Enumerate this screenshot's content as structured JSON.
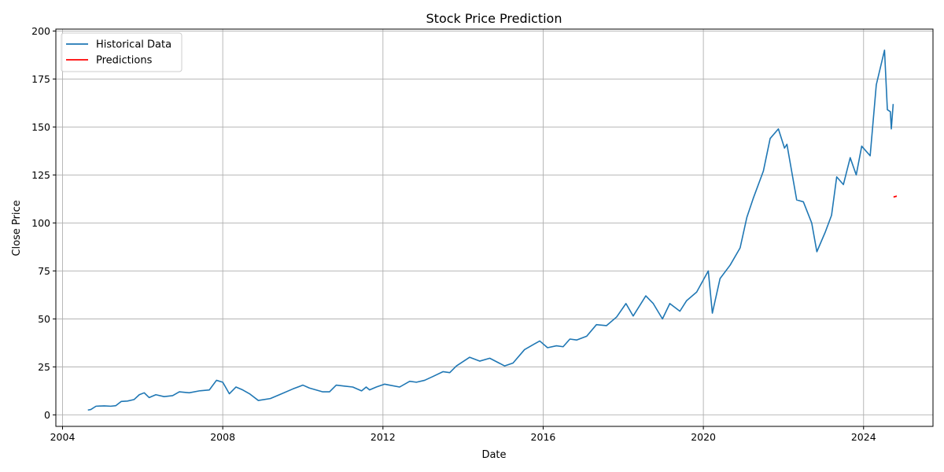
{
  "chart_data": {
    "type": "line",
    "title": "Stock Price Prediction",
    "xlabel": "Date",
    "ylabel": "Close Price",
    "xlim": [
      "2003-11-01",
      "2025-09-25"
    ],
    "ylim": [
      -6,
      201
    ],
    "x_ticks": [
      "2004",
      "2008",
      "2012",
      "2016",
      "2020",
      "2024"
    ],
    "y_ticks": [
      0,
      25,
      50,
      75,
      100,
      125,
      150,
      175,
      200
    ],
    "grid": true,
    "legend_position": "top-left",
    "series": [
      {
        "name": "Historical Data",
        "color": "#1f77b4",
        "points": [
          [
            "2004-08-19",
            2.5
          ],
          [
            "2004-09-15",
            2.8
          ],
          [
            "2004-11-01",
            4.5
          ],
          [
            "2005-01-15",
            4.7
          ],
          [
            "2005-03-15",
            4.5
          ],
          [
            "2005-05-01",
            4.8
          ],
          [
            "2005-06-20",
            7.0
          ],
          [
            "2005-08-15",
            7.2
          ],
          [
            "2005-10-15",
            8.0
          ],
          [
            "2005-12-01",
            10.5
          ],
          [
            "2006-01-15",
            11.5
          ],
          [
            "2006-03-01",
            9.0
          ],
          [
            "2006-05-01",
            10.5
          ],
          [
            "2006-07-15",
            9.5
          ],
          [
            "2006-10-01",
            10.0
          ],
          [
            "2006-12-01",
            12.0
          ],
          [
            "2007-03-01",
            11.5
          ],
          [
            "2007-06-01",
            12.5
          ],
          [
            "2007-09-01",
            13.0
          ],
          [
            "2007-11-05",
            18.0
          ],
          [
            "2008-01-01",
            17.0
          ],
          [
            "2008-03-01",
            11.0
          ],
          [
            "2008-05-01",
            14.5
          ],
          [
            "2008-07-01",
            13.0
          ],
          [
            "2008-09-01",
            11.0
          ],
          [
            "2008-11-20",
            7.5
          ],
          [
            "2009-03-10",
            8.5
          ],
          [
            "2009-06-01",
            10.5
          ],
          [
            "2009-10-01",
            13.5
          ],
          [
            "2010-01-01",
            15.5
          ],
          [
            "2010-03-01",
            14.0
          ],
          [
            "2010-07-01",
            12.0
          ],
          [
            "2010-09-01",
            12.0
          ],
          [
            "2010-11-01",
            15.5
          ],
          [
            "2011-01-15",
            15.0
          ],
          [
            "2011-04-01",
            14.5
          ],
          [
            "2011-06-20",
            12.5
          ],
          [
            "2011-08-01",
            14.5
          ],
          [
            "2011-09-01",
            13.0
          ],
          [
            "2011-11-01",
            14.5
          ],
          [
            "2012-01-15",
            16.0
          ],
          [
            "2012-03-01",
            15.5
          ],
          [
            "2012-06-01",
            14.5
          ],
          [
            "2012-09-01",
            17.5
          ],
          [
            "2012-11-01",
            17.0
          ],
          [
            "2013-01-15",
            18.0
          ],
          [
            "2013-04-01",
            20.0
          ],
          [
            "2013-07-01",
            22.5
          ],
          [
            "2013-09-01",
            22.0
          ],
          [
            "2013-11-01",
            25.5
          ],
          [
            "2014-03-01",
            30.0
          ],
          [
            "2014-06-01",
            28.0
          ],
          [
            "2014-09-01",
            29.5
          ],
          [
            "2015-01-15",
            25.5
          ],
          [
            "2015-04-01",
            27.0
          ],
          [
            "2015-07-15",
            34.0
          ],
          [
            "2015-10-15",
            37.0
          ],
          [
            "2015-12-01",
            38.5
          ],
          [
            "2016-02-10",
            35.0
          ],
          [
            "2016-05-01",
            36.0
          ],
          [
            "2016-07-01",
            35.5
          ],
          [
            "2016-09-01",
            39.5
          ],
          [
            "2016-11-01",
            39.0
          ],
          [
            "2017-02-01",
            41.0
          ],
          [
            "2017-05-01",
            47.0
          ],
          [
            "2017-08-01",
            46.5
          ],
          [
            "2017-11-01",
            51.0
          ],
          [
            "2018-01-25",
            58.0
          ],
          [
            "2018-04-01",
            51.5
          ],
          [
            "2018-07-25",
            62.0
          ],
          [
            "2018-10-01",
            58.0
          ],
          [
            "2018-12-24",
            50.0
          ],
          [
            "2019-03-01",
            58.0
          ],
          [
            "2019-06-01",
            54.0
          ],
          [
            "2019-08-01",
            59.5
          ],
          [
            "2019-11-01",
            64.0
          ],
          [
            "2020-02-15",
            75.0
          ],
          [
            "2020-03-23",
            53.0
          ],
          [
            "2020-06-01",
            71.0
          ],
          [
            "2020-09-01",
            78.0
          ],
          [
            "2020-12-01",
            87.0
          ],
          [
            "2021-02-01",
            103.0
          ],
          [
            "2021-04-01",
            113.0
          ],
          [
            "2021-07-01",
            127.0
          ],
          [
            "2021-09-01",
            144.0
          ],
          [
            "2021-11-15",
            149.0
          ],
          [
            "2022-01-10",
            139.0
          ],
          [
            "2022-02-01",
            141.0
          ],
          [
            "2022-05-01",
            112.0
          ],
          [
            "2022-07-01",
            111.0
          ],
          [
            "2022-09-15",
            100.0
          ],
          [
            "2022-11-01",
            85.0
          ],
          [
            "2023-01-15",
            95.0
          ],
          [
            "2023-03-15",
            104.0
          ],
          [
            "2023-05-01",
            124.0
          ],
          [
            "2023-07-01",
            120.0
          ],
          [
            "2023-09-01",
            134.0
          ],
          [
            "2023-10-26",
            125.0
          ],
          [
            "2023-12-15",
            140.0
          ],
          [
            "2024-03-01",
            135.0
          ],
          [
            "2024-04-26",
            172.0
          ],
          [
            "2024-07-10",
            190.0
          ],
          [
            "2024-08-05",
            159.0
          ],
          [
            "2024-09-01",
            158.0
          ],
          [
            "2024-09-10",
            149.0
          ],
          [
            "2024-09-27",
            162.0
          ]
        ]
      },
      {
        "name": "Predictions",
        "color": "#ff0000",
        "points": [
          [
            "2024-09-30",
            113.5
          ],
          [
            "2024-10-30",
            114.0
          ]
        ]
      }
    ]
  }
}
